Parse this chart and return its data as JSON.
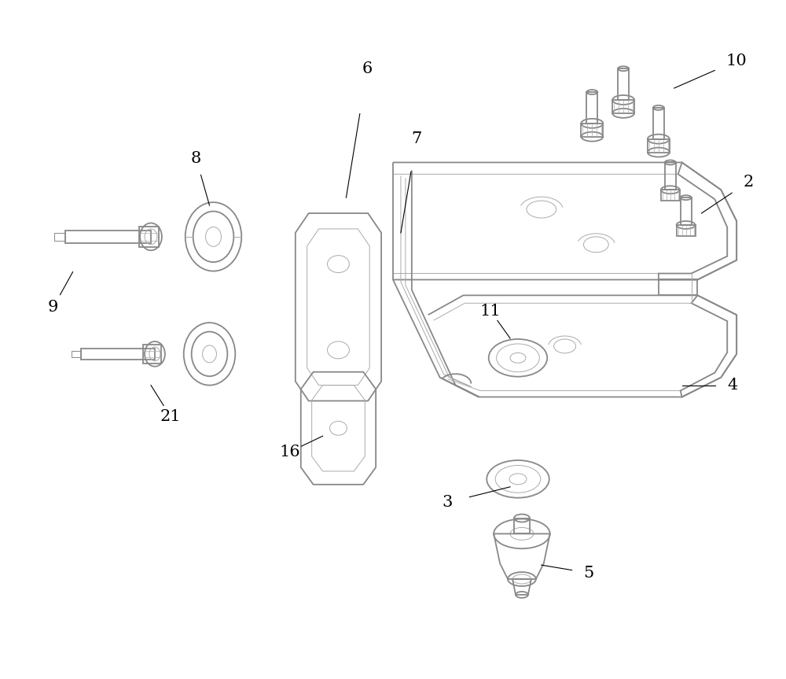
{
  "bg_color": "#ffffff",
  "line_color": "#aaaaaa",
  "dark_line": "#888888",
  "label_color": "#000000",
  "figsize": [
    10,
    8.63
  ],
  "dpi": 100,
  "lw_main": 1.3,
  "lw_thin": 0.7,
  "label_fs": 15
}
